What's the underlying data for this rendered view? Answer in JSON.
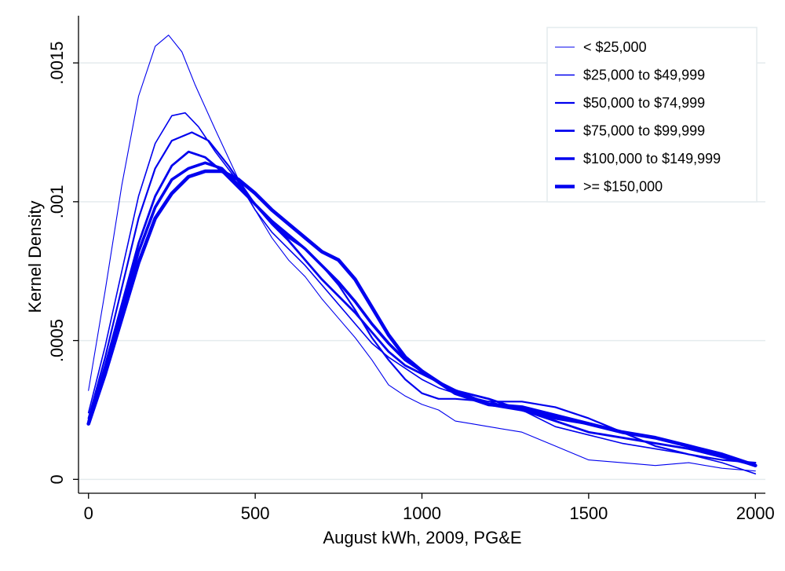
{
  "chart_data": {
    "type": "line",
    "title": "",
    "xlabel": "August kWh, 2009, PG&E",
    "ylabel": "Kernel Density",
    "xlim": [
      -30,
      2030
    ],
    "ylim": [
      -5e-05,
      0.00167
    ],
    "xticks": [
      0,
      500,
      1000,
      1500,
      2000
    ],
    "xtick_labels": [
      "0",
      "500",
      "1000",
      "1500",
      "2000"
    ],
    "yticks": [
      0,
      0.0005,
      0.001,
      0.0015
    ],
    "ytick_labels": [
      "0",
      ".0005",
      ".001",
      ".0015"
    ],
    "grid": "horizontal",
    "legend_position": "top-right",
    "line_color": "#0000ee",
    "series": [
      {
        "name": "< $25,000",
        "x": [
          0,
          50,
          100,
          150,
          200,
          240,
          280,
          320,
          380,
          450,
          500,
          550,
          600,
          650,
          700,
          750,
          800,
          850,
          900,
          950,
          1000,
          1050,
          1100,
          1150,
          1200,
          1300,
          1400,
          1500,
          1600,
          1700,
          1800,
          1900,
          2000
        ],
        "y": [
          0.00032,
          0.00068,
          0.00106,
          0.00138,
          0.00156,
          0.0016,
          0.00154,
          0.00142,
          0.00126,
          0.00108,
          0.00097,
          0.00087,
          0.00079,
          0.00073,
          0.00065,
          0.00058,
          0.00051,
          0.00043,
          0.00034,
          0.0003,
          0.00027,
          0.00025,
          0.00021,
          0.0002,
          0.00019,
          0.00017,
          0.00012,
          7e-05,
          6e-05,
          5e-05,
          6e-05,
          4e-05,
          3e-05
        ]
      },
      {
        "name": "$25,000 to $49,999",
        "x": [
          0,
          50,
          100,
          150,
          200,
          250,
          290,
          330,
          380,
          450,
          500,
          550,
          600,
          650,
          700,
          750,
          800,
          850,
          900,
          950,
          1000,
          1050,
          1100,
          1200,
          1300,
          1400,
          1500,
          1600,
          1700,
          1800,
          1900,
          2000
        ],
        "y": [
          0.00024,
          0.00048,
          0.00075,
          0.00102,
          0.00121,
          0.00131,
          0.00132,
          0.00127,
          0.00118,
          0.00107,
          0.00097,
          0.00089,
          0.00083,
          0.00077,
          0.0007,
          0.00063,
          0.00056,
          0.00049,
          0.00044,
          0.0004,
          0.00036,
          0.00033,
          0.00031,
          0.00028,
          0.00025,
          0.00019,
          0.00016,
          0.00013,
          0.00011,
          9e-05,
          6e-05,
          2e-05
        ]
      },
      {
        "name": "$50,000 to $74,999",
        "x": [
          0,
          50,
          100,
          150,
          200,
          250,
          310,
          360,
          420,
          500,
          550,
          600,
          650,
          700,
          750,
          800,
          850,
          900,
          950,
          1000,
          1050,
          1100,
          1200,
          1300,
          1400,
          1500,
          1600,
          1700,
          1800,
          1900,
          2000
        ],
        "y": [
          0.00022,
          0.00044,
          0.00069,
          0.00094,
          0.00112,
          0.00122,
          0.00125,
          0.00122,
          0.00113,
          0.00099,
          0.00092,
          0.00087,
          0.00083,
          0.00077,
          0.0007,
          0.00061,
          0.00051,
          0.00043,
          0.00036,
          0.00031,
          0.00029,
          0.00029,
          0.00028,
          0.00028,
          0.00026,
          0.00022,
          0.00017,
          0.00012,
          9e-05,
          7e-05,
          6e-05
        ]
      },
      {
        "name": "$75,000 to $99,999",
        "x": [
          0,
          50,
          100,
          150,
          200,
          250,
          300,
          350,
          400,
          450,
          500,
          550,
          600,
          650,
          700,
          750,
          800,
          850,
          900,
          950,
          1000,
          1050,
          1100,
          1200,
          1300,
          1400,
          1500,
          1600,
          1700,
          1800,
          1900,
          2000
        ],
        "y": [
          0.00021,
          0.00041,
          0.00063,
          0.00085,
          0.00102,
          0.00113,
          0.00118,
          0.00116,
          0.00111,
          0.00105,
          0.00099,
          0.00092,
          0.00086,
          0.00079,
          0.00072,
          0.00066,
          0.0006,
          0.00053,
          0.00046,
          0.00041,
          0.00038,
          0.00035,
          0.00032,
          0.00029,
          0.00025,
          0.00021,
          0.00017,
          0.00015,
          0.00013,
          0.00011,
          8e-05,
          5e-05
        ]
      },
      {
        "name": "$100,000 to $149,999",
        "x": [
          0,
          50,
          100,
          150,
          200,
          250,
          300,
          350,
          400,
          450,
          500,
          550,
          600,
          650,
          700,
          750,
          800,
          850,
          900,
          950,
          1000,
          1050,
          1100,
          1200,
          1300,
          1400,
          1500,
          1600,
          1700,
          1800,
          1900,
          2000
        ],
        "y": [
          0.0002,
          0.0004,
          0.00061,
          0.00082,
          0.00098,
          0.00108,
          0.00112,
          0.00114,
          0.00112,
          0.00106,
          0.00099,
          0.00093,
          0.00088,
          0.00083,
          0.00077,
          0.00071,
          0.00064,
          0.00056,
          0.00049,
          0.00043,
          0.00039,
          0.00035,
          0.00032,
          0.00027,
          0.00025,
          0.00022,
          0.0002,
          0.00017,
          0.00015,
          0.00012,
          9e-05,
          5e-05
        ]
      },
      {
        "name": ">= $150,000",
        "x": [
          0,
          50,
          100,
          150,
          200,
          250,
          300,
          350,
          400,
          450,
          500,
          550,
          600,
          650,
          700,
          750,
          800,
          850,
          900,
          950,
          1000,
          1050,
          1100,
          1200,
          1300,
          1400,
          1500,
          1600,
          1700,
          1800,
          1900,
          2000
        ],
        "y": [
          0.0002,
          0.00038,
          0.00058,
          0.00078,
          0.00094,
          0.00103,
          0.00109,
          0.00111,
          0.00111,
          0.00108,
          0.00103,
          0.00097,
          0.00092,
          0.00087,
          0.00082,
          0.00079,
          0.00072,
          0.00062,
          0.00052,
          0.00044,
          0.00039,
          0.00035,
          0.00031,
          0.00027,
          0.00026,
          0.00023,
          0.0002,
          0.00017,
          0.00015,
          0.00012,
          9e-05,
          5e-05
        ]
      }
    ]
  }
}
